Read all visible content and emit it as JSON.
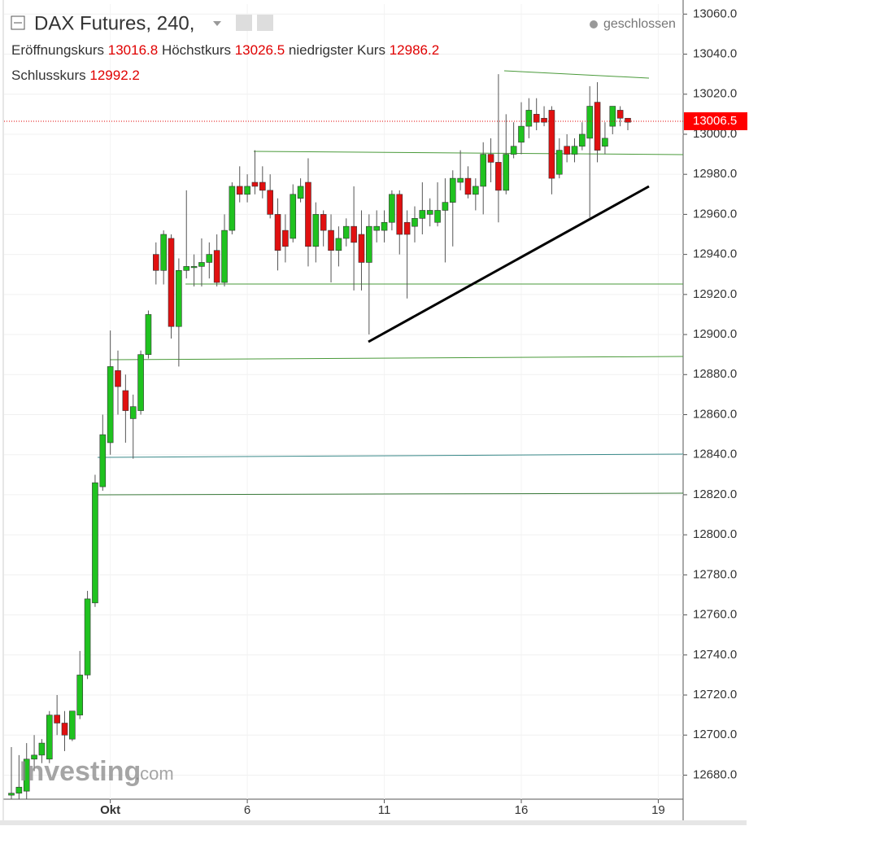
{
  "chart_data": {
    "type": "candlestick",
    "title": "DAX Futures, 240,",
    "status": "geschlossen",
    "info": {
      "open_label": "Eröffnungskurs",
      "open": 13016.8,
      "high_label": "Höchstkurs",
      "high": 13026.5,
      "low_label": "niedrigster Kurs",
      "low": 12986.2,
      "close_label": "Schlusskurs",
      "close": 12992.2
    },
    "last_price": 13006.5,
    "last_price_label": "13006.5",
    "logo": "Investing",
    "logo_suffix": ".com",
    "categories": [
      null,
      null,
      null,
      null,
      null,
      null,
      null,
      null,
      null,
      null,
      null,
      null,
      null,
      "Okt",
      null,
      null,
      null,
      null,
      null,
      null,
      null,
      null,
      null,
      null,
      null,
      null,
      null,
      null,
      null,
      null,
      null,
      "6",
      null,
      null,
      null,
      null,
      null,
      null,
      null,
      null,
      null,
      null,
      null,
      null,
      null,
      null,
      null,
      null,
      null,
      "11",
      null,
      null,
      null,
      null,
      null,
      null,
      null,
      null,
      null,
      null,
      null,
      null,
      null,
      null,
      null,
      null,
      null,
      "16",
      null,
      null,
      null,
      null,
      null,
      null,
      null,
      null,
      null,
      null,
      null,
      null,
      null,
      null,
      null,
      null,
      null,
      "19"
    ],
    "up_color": "#1fc21f",
    "down_color": "#e01010",
    "series": [
      {
        "name": "open",
        "values": [
          12670,
          12671,
          12672,
          12688,
          12690,
          12688,
          12710,
          12706,
          12698,
          12710,
          12730,
          12766,
          12824,
          12846,
          12882,
          12872,
          12858,
          12862,
          12890,
          12940,
          12932,
          12948,
          12904,
          12932,
          12934,
          12934,
          12936,
          12942,
          12926,
          12952,
          12974,
          12970,
          12976,
          12976,
          12972,
          12960,
          12952,
          12948,
          12968,
          12976,
          12944,
          12960,
          12952,
          12942,
          12948,
          12954,
          12950,
          12936,
          12952,
          12952,
          12956,
          12970,
          12956,
          12954,
          12958,
          12960,
          12956,
          12962,
          12966,
          12976,
          12978,
          12970,
          12974,
          12990,
          12986,
          12972,
          12990,
          12996,
          13004,
          13010,
          13008,
          13012,
          12980,
          12994,
          12990,
          12994,
          12998,
          13016,
          12994,
          13004,
          13012,
          13008,
          null,
          null,
          null,
          null
        ]
      },
      {
        "name": "high",
        "values": [
          12694,
          12690,
          12696,
          12700,
          12698,
          12712,
          12720,
          12712,
          12712,
          12742,
          12772,
          12830,
          12860,
          12902,
          12892,
          12880,
          12870,
          12892,
          12912,
          12946,
          12952,
          12950,
          12938,
          12972,
          12940,
          12948,
          12946,
          12950,
          12960,
          12976,
          12984,
          12980,
          12992,
          12984,
          12980,
          12968,
          12960,
          12975,
          12978,
          12988,
          12966,
          12962,
          12960,
          12954,
          12958,
          12974,
          12962,
          12960,
          12962,
          12962,
          12972,
          12972,
          12962,
          12964,
          12976,
          12968,
          12976,
          12978,
          12982,
          12992,
          12984,
          12978,
          12996,
          12998,
          13030,
          13010,
          13006,
          13016,
          13018,
          13018,
          13014,
          13014,
          12998,
          13000,
          12998,
          13006,
          13024,
          13026,
          13006,
          13014,
          13014,
          13008,
          null,
          null,
          null,
          null
        ]
      },
      {
        "name": "low",
        "values": [
          12668,
          12668,
          12668,
          12682,
          12686,
          12686,
          12700,
          12692,
          12697,
          12708,
          12728,
          12764,
          12822,
          12840,
          12860,
          12846,
          12838,
          12860,
          12888,
          12925,
          12925,
          12898,
          12884,
          12928,
          12924,
          12924,
          12928,
          12924,
          12924,
          12950,
          12966,
          12966,
          12970,
          12968,
          12958,
          12932,
          12936,
          12946,
          12966,
          12934,
          12936,
          12944,
          12926,
          12934,
          12944,
          12922,
          12922,
          12900,
          12946,
          12946,
          12952,
          12940,
          12918,
          12946,
          12950,
          12954,
          12954,
          12936,
          12944,
          12972,
          12968,
          12962,
          12960,
          12976,
          12956,
          12970,
          12988,
          12990,
          12998,
          13002,
          13004,
          12970,
          12978,
          12986,
          12986,
          12992,
          12958,
          12986,
          12990,
          13000,
          13004,
          13002,
          null,
          null,
          null,
          null
        ]
      },
      {
        "name": "close",
        "values": [
          12671,
          12674,
          12688,
          12690,
          12696,
          12710,
          12706,
          12700,
          12712,
          12730,
          12768,
          12826,
          12850,
          12884,
          12874,
          12862,
          12864,
          12890,
          12910,
          12932,
          12950,
          12904,
          12932,
          12934,
          12934,
          12936,
          12940,
          12926,
          12952,
          12974,
          12970,
          12974,
          12974,
          12972,
          12960,
          12942,
          12944,
          12970,
          12974,
          12944,
          12960,
          12952,
          12942,
          12948,
          12954,
          12946,
          12936,
          12954,
          12954,
          12956,
          12970,
          12950,
          12950,
          12958,
          12962,
          12962,
          12962,
          12966,
          12978,
          12978,
          12970,
          12974,
          12990,
          12986,
          12972,
          12990,
          12994,
          13004,
          13012,
          13006,
          13006,
          12978,
          12992,
          12990,
          12994,
          13000,
          13014,
          12992,
          12998,
          13014,
          13008,
          13006,
          null,
          null,
          null,
          null
        ]
      }
    ],
    "ylim": [
      12668,
      13065
    ],
    "yticks": [
      {
        "value": 12680,
        "label": "12680.0"
      },
      {
        "value": 12700,
        "label": "12700.0"
      },
      {
        "value": 12720,
        "label": "12720.0"
      },
      {
        "value": 12740,
        "label": "12740.0"
      },
      {
        "value": 12760,
        "label": "12760.0"
      },
      {
        "value": 12780,
        "label": "12780.0"
      },
      {
        "value": 12800,
        "label": "12800.0"
      },
      {
        "value": 12820,
        "label": "12820.0"
      },
      {
        "value": 12840,
        "label": "12840.0"
      },
      {
        "value": 12860,
        "label": "12860.0"
      },
      {
        "value": 12880,
        "label": "12880.0"
      },
      {
        "value": 12900,
        "label": "12900.0"
      },
      {
        "value": 12920,
        "label": "12920.0"
      },
      {
        "value": 12940,
        "label": "12940.0"
      },
      {
        "value": 12960,
        "label": "12960.0"
      },
      {
        "value": 12980,
        "label": "12980.0"
      },
      {
        "value": 13000,
        "label": "13000.0"
      },
      {
        "value": 13020,
        "label": "13020.0"
      },
      {
        "value": 13040,
        "label": "13040.0"
      },
      {
        "value": 13060,
        "label": "13060.0"
      }
    ],
    "grid": true
  }
}
